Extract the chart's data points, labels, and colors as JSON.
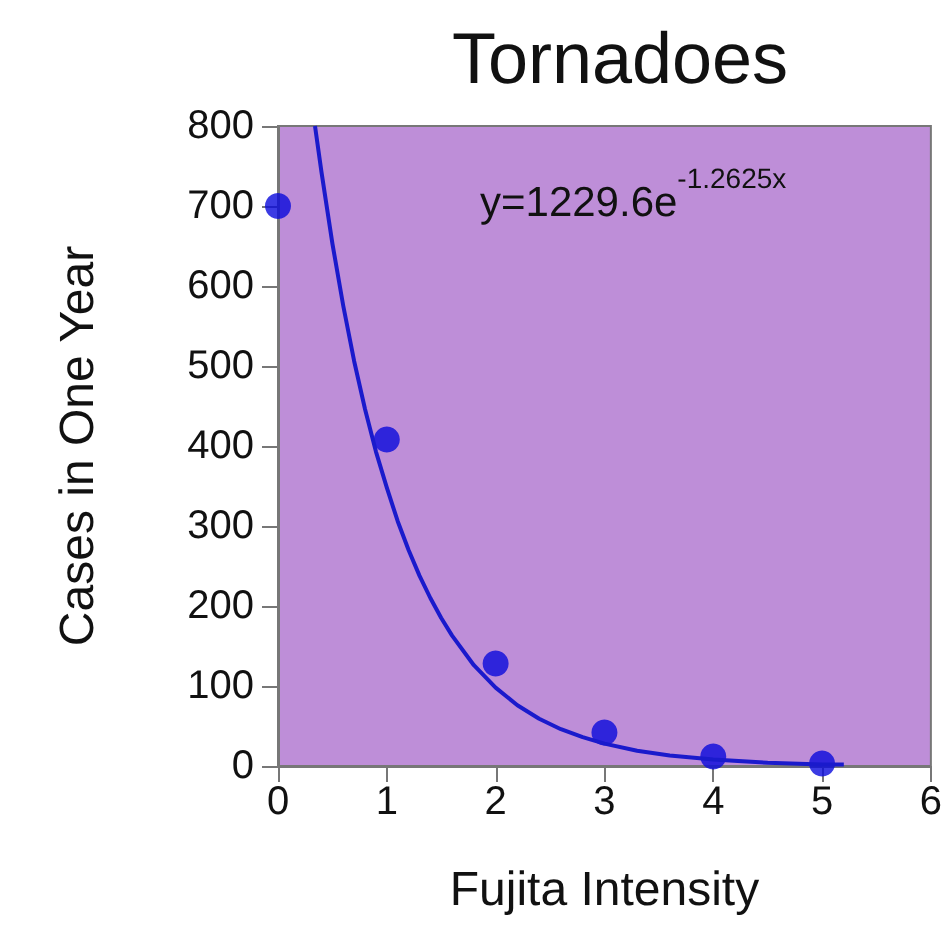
{
  "chart_data": {
    "type": "scatter",
    "title": "Tornadoes",
    "xlabel": "Fujita Intensity",
    "ylabel": "Cases in One Year",
    "annotations": [
      "y=1229.6e$^{-1.2625x}$"
    ],
    "x": [
      0,
      1,
      2,
      3,
      4,
      5
    ],
    "series": [
      {
        "color": "#0a0adc",
        "values": [
          700,
          408,
          128,
          42,
          12,
          3
        ]
      },
      {
        "type": "line",
        "color": "#1a1acc",
        "marker": "none",
        "x": [
          0.34,
          0.4,
          0.5,
          0.6,
          0.7,
          0.8,
          0.9,
          1,
          1.1,
          1.2,
          1.3,
          1.4,
          1.5,
          1.6,
          1.8,
          2,
          2.2,
          2.4,
          2.6,
          2.8,
          3,
          3.3,
          3.6,
          4,
          4.5,
          5,
          5.2
        ],
        "values": [
          800,
          742,
          653,
          575,
          506,
          446,
          393,
          348,
          306,
          270,
          238,
          210,
          185,
          163,
          126,
          98,
          76,
          59,
          46,
          36,
          28,
          19,
          13,
          8,
          4,
          2,
          2
        ]
      }
    ],
    "marker": "circle",
    "grid": false,
    "xlim": [
      0,
      6
    ],
    "xticks": [
      0,
      1,
      2,
      3,
      4,
      5,
      6
    ],
    "ylim": [
      0,
      800
    ],
    "yticks": [
      0,
      100,
      200,
      300,
      400,
      500,
      600,
      700,
      800
    ]
  }
}
